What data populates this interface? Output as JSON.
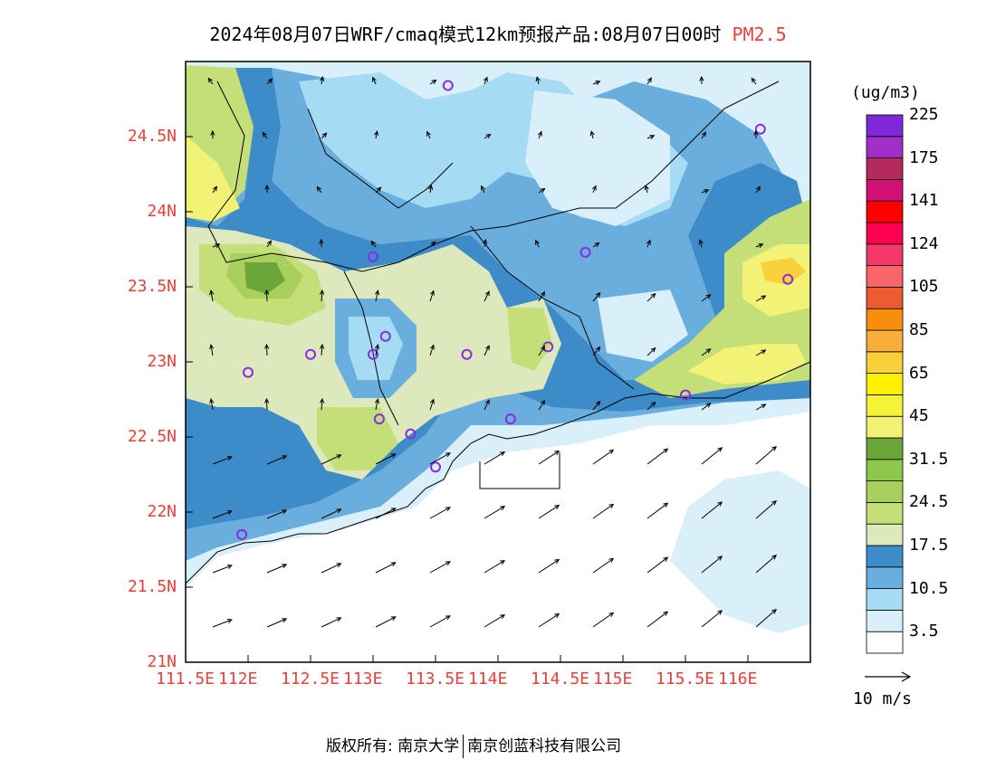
{
  "header": {
    "title": "2024年08月07日WRF/cmaq模式12km预报产品:08月07日00时",
    "pollutant": "PM2.5"
  },
  "map": {
    "lat_labels": [
      "24.5N",
      "24N",
      "23.5N",
      "23N",
      "22.5N",
      "22N",
      "21.5N",
      "21N"
    ],
    "lon_labels": [
      "111.5E",
      "112E",
      "112.5E",
      "113E",
      "113.5E",
      "114E",
      "114.5E",
      "115E",
      "115.5E",
      "116E"
    ],
    "lon_range": [
      111.5,
      116.5
    ],
    "lat_range": [
      21.0,
      25.0
    ],
    "stations": [
      [
        113.6,
        24.84
      ],
      [
        116.1,
        24.55
      ],
      [
        113.0,
        23.7
      ],
      [
        114.7,
        23.73
      ],
      [
        116.32,
        23.55
      ],
      [
        112.5,
        23.05
      ],
      [
        113.0,
        23.05
      ],
      [
        113.1,
        23.17
      ],
      [
        113.75,
        23.05
      ],
      [
        114.4,
        23.1
      ],
      [
        112.0,
        22.93
      ],
      [
        113.05,
        22.62
      ],
      [
        113.3,
        22.52
      ],
      [
        113.5,
        22.3
      ],
      [
        114.1,
        22.62
      ],
      [
        115.5,
        22.78
      ],
      [
        111.95,
        21.85
      ]
    ]
  },
  "colorbar": {
    "unit": "(ug/m3)",
    "colors": [
      "#ffffff",
      "#d9effa",
      "#a6dbf4",
      "#6aaedd",
      "#3d8bc8",
      "#dde9bc",
      "#c4de78",
      "#a9d05d",
      "#8fc74c",
      "#6ba63a",
      "#f2f276",
      "#f5f239",
      "#ffef00",
      "#f7d03a",
      "#f7ae3a",
      "#f98d0d",
      "#ed5b33",
      "#f9666a",
      "#f3386c",
      "#ff0053",
      "#ff0000",
      "#d10f75",
      "#b42a5d",
      "#a030c8",
      "#7e28d9"
    ],
    "labels": [
      "3.5",
      "10.5",
      "17.5",
      "24.5",
      "31.5",
      "45",
      "65",
      "85",
      "105",
      "124",
      "141",
      "175",
      "225"
    ]
  },
  "wind_legend": {
    "label": "10 m/s"
  },
  "footer": {
    "copyright": "版权所有: 南京大学",
    "company": "南京创蓝科技有限公司"
  }
}
